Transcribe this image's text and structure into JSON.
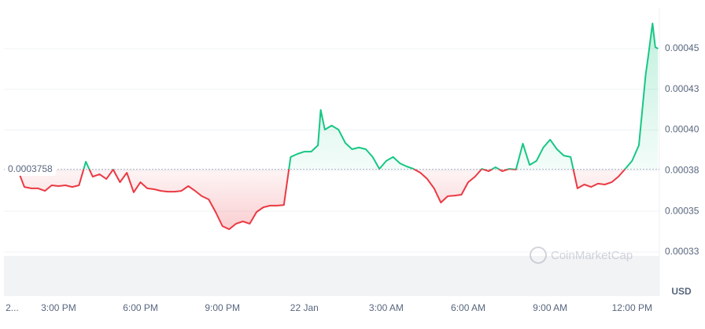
{
  "chart_data": {
    "type": "line",
    "up_color": "#16c784",
    "down_color": "#ea3943",
    "reference": 0.0003758,
    "currency": "USD",
    "watermark": "CoinMarketCap",
    "xlim": [
      13,
      37
    ],
    "xticks": [
      {
        "value": 13.3,
        "label": "2..."
      },
      {
        "value": 15,
        "label": "3:00 PM"
      },
      {
        "value": 18,
        "label": "6:00 PM"
      },
      {
        "value": 21,
        "label": "9:00 PM"
      },
      {
        "value": 24,
        "label": "22 Jan"
      },
      {
        "value": 27,
        "label": "3:00 AM"
      },
      {
        "value": 30,
        "label": "6:00 AM"
      },
      {
        "value": 33,
        "label": "9:00 AM"
      },
      {
        "value": 36,
        "label": "12:00 PM"
      }
    ],
    "ylim": [
      0.000298,
      0.000475
    ],
    "yticks": [
      {
        "value": 0.000325,
        "label": "0.00033"
      },
      0.00035,
      {
        "value": 0.000375,
        "label": "0.00038"
      },
      {
        "value": 0.0004,
        "label": "0.00040"
      },
      {
        "value": 0.000425,
        "label": "0.00043"
      },
      0.00045
    ],
    "grid": true,
    "x": [
      13.5,
      13.75,
      14,
      14.25,
      14.5,
      14.75,
      15,
      15.25,
      15.5,
      15.75,
      16,
      16.25,
      16.5,
      16.75,
      17,
      17.25,
      17.5,
      17.75,
      18,
      18.25,
      18.5,
      18.75,
      19,
      19.25,
      19.5,
      19.75,
      20,
      20.25,
      20.5,
      20.75,
      21,
      21.25,
      21.5,
      21.75,
      22,
      22.25,
      22.5,
      22.75,
      23,
      23.25,
      23.5,
      23.75,
      24,
      24.25,
      24.5,
      24.6,
      24.75,
      25,
      25.25,
      25.5,
      25.75,
      26,
      26.25,
      26.5,
      26.75,
      27,
      27.25,
      27.5,
      27.75,
      28,
      28.25,
      28.5,
      28.75,
      29,
      29.25,
      29.5,
      29.75,
      30,
      30.25,
      30.5,
      30.75,
      31,
      31.25,
      31.5,
      31.75,
      32,
      32.25,
      32.5,
      32.75,
      33,
      33.25,
      33.5,
      33.75,
      34,
      34.25,
      34.5,
      34.75,
      35,
      35.25,
      35.5,
      35.75,
      36,
      36.25,
      36.5,
      36.6,
      36.75,
      36.85,
      36.95
    ],
    "values": [
      0.0003757,
      0.000365,
      0.0003641,
      0.0003641,
      0.0003626,
      0.000366,
      0.0003655,
      0.000366,
      0.000365,
      0.000366,
      0.0003805,
      0.0003713,
      0.0003728,
      0.0003699,
      0.0003757,
      0.0003679,
      0.0003737,
      0.0003617,
      0.0003679,
      0.0003641,
      0.0003636,
      0.0003626,
      0.0003621,
      0.0003621,
      0.0003626,
      0.0003655,
      0.0003626,
      0.0003593,
      0.0003573,
      0.0003496,
      0.0003409,
      0.000339,
      0.0003424,
      0.0003438,
      0.0003424,
      0.0003496,
      0.0003525,
      0.0003535,
      0.0003535,
      0.0003539,
      0.0003834,
      0.0003853,
      0.0003867,
      0.0003867,
      0.0003906,
      0.0004123,
      0.0004002,
      0.0004027,
      0.0004002,
      0.000392,
      0.0003882,
      0.0003892,
      0.0003882,
      0.0003834,
      0.0003761,
      0.000381,
      0.0003834,
      0.0003795,
      0.0003776,
      0.0003761,
      0.0003737,
      0.0003699,
      0.0003641,
      0.0003554,
      0.0003593,
      0.0003597,
      0.0003602,
      0.0003679,
      0.0003713,
      0.0003761,
      0.0003747,
      0.0003771,
      0.0003747,
      0.0003761,
      0.0003757,
      0.0003916,
      0.0003785,
      0.000381,
      0.0003892,
      0.000394,
      0.0003882,
      0.0003843,
      0.0003834,
      0.0003641,
      0.0003665,
      0.000365,
      0.000367,
      0.0003665,
      0.0003679,
      0.0003713,
      0.0003761,
      0.000381,
      0.0003906,
      0.000434,
      0.0004461,
      0.0004654,
      0.0004509,
      0.0004499
    ]
  }
}
